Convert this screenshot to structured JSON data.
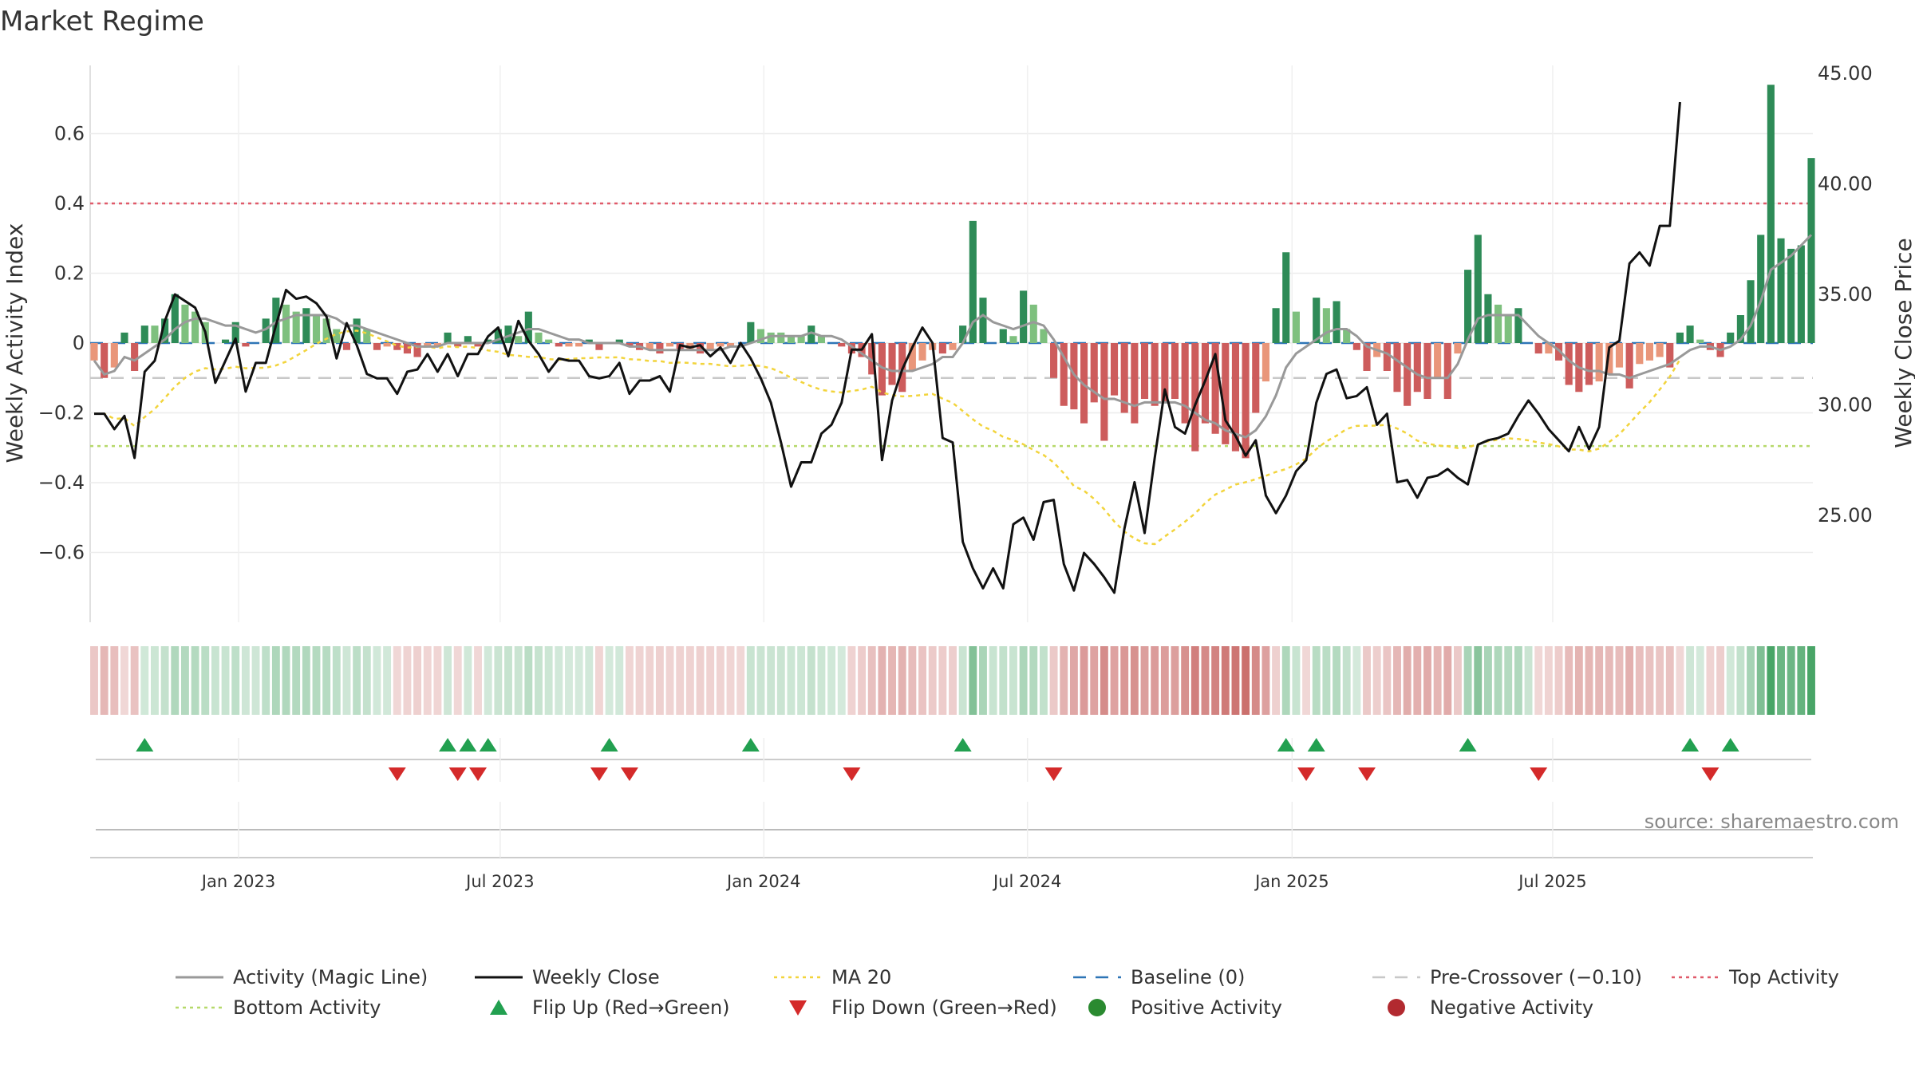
{
  "chart_data": {
    "type": "bar",
    "title": "Market Regime",
    "ylabel_left": "Weekly Activity Index",
    "ylabel_right": "Weekly Close Price",
    "source": "source: sharemaestro.com",
    "left_ylim": [
      -0.8,
      0.8
    ],
    "right_ylim": [
      20,
      46
    ],
    "left_ticks": [
      "0.6",
      "0.4",
      "0.2",
      "0",
      "−0.2",
      "−0.4",
      "−0.6"
    ],
    "left_tick_values": [
      0.6,
      0.4,
      0.2,
      0,
      -0.2,
      -0.4,
      -0.6
    ],
    "right_ticks": [
      "45.00",
      "40.00",
      "35.00",
      "30.00",
      "25.00"
    ],
    "right_tick_values": [
      45,
      40,
      35,
      30,
      25
    ],
    "x_ticks": [
      "Jan 2023",
      "Jul 2023",
      "Jan 2024",
      "Jul 2024",
      "Jan 2025",
      "Jul 2025"
    ],
    "x_tick_weeks": [
      14.3,
      40.2,
      66.3,
      92.4,
      118.6,
      144.4
    ],
    "reference_lines": {
      "top_activity": 0.4,
      "bottom_activity": -0.295,
      "pre_crossover": -0.1,
      "baseline": 0
    },
    "activity": [
      -0.05,
      -0.1,
      -0.07,
      0.03,
      -0.08,
      0.05,
      0.05,
      0.07,
      0.14,
      0.11,
      0.09,
      0.06,
      0.0,
      0.01,
      0.06,
      -0.01,
      0.0,
      0.07,
      0.13,
      0.11,
      0.09,
      0.1,
      0.08,
      0.07,
      0.04,
      -0.02,
      0.07,
      0.04,
      -0.02,
      -0.01,
      -0.02,
      -0.03,
      -0.04,
      -0.01,
      -0.01,
      0.03,
      -0.01,
      0.02,
      -0.01,
      0.01,
      0.04,
      0.05,
      0.02,
      0.09,
      0.03,
      0.01,
      -0.01,
      -0.01,
      -0.01,
      0.01,
      -0.02,
      0.0,
      0.01,
      -0.01,
      -0.02,
      -0.02,
      -0.03,
      -0.01,
      -0.02,
      -0.02,
      -0.03,
      -0.02,
      -0.01,
      -0.01,
      0.0,
      0.06,
      0.04,
      0.03,
      0.03,
      0.02,
      0.02,
      0.05,
      0.02,
      0.0,
      -0.01,
      -0.03,
      -0.04,
      -0.09,
      -0.15,
      -0.12,
      -0.14,
      -0.08,
      -0.05,
      -0.02,
      -0.03,
      -0.02,
      0.05,
      0.35,
      0.13,
      0.0,
      0.04,
      0.02,
      0.15,
      0.11,
      0.04,
      -0.1,
      -0.18,
      -0.19,
      -0.23,
      -0.17,
      -0.28,
      -0.15,
      -0.2,
      -0.23,
      -0.16,
      -0.18,
      -0.17,
      -0.16,
      -0.23,
      -0.31,
      -0.23,
      -0.26,
      -0.29,
      -0.31,
      -0.33,
      -0.2,
      -0.11,
      0.1,
      0.26,
      0.09,
      0.0,
      0.13,
      0.1,
      0.12,
      0.04,
      -0.02,
      -0.08,
      -0.04,
      -0.08,
      -0.14,
      -0.18,
      -0.14,
      -0.16,
      -0.1,
      -0.16,
      -0.03,
      0.21,
      0.31,
      0.14,
      0.11,
      0.08,
      0.1,
      0.0,
      -0.03,
      -0.03,
      -0.05,
      -0.12,
      -0.14,
      -0.12,
      -0.11,
      -0.09,
      -0.07,
      -0.13,
      -0.06,
      -0.05,
      -0.04,
      -0.07,
      0.03,
      0.05,
      0.01,
      -0.02,
      -0.04,
      0.03,
      0.08,
      0.18,
      0.31,
      0.74,
      0.3,
      0.27,
      0.28,
      0.53
    ],
    "magic_line": [
      -0.05,
      -0.09,
      -0.08,
      -0.04,
      -0.05,
      -0.03,
      -0.01,
      0.01,
      0.04,
      0.06,
      0.07,
      0.07,
      0.06,
      0.05,
      0.05,
      0.04,
      0.03,
      0.04,
      0.06,
      0.07,
      0.08,
      0.08,
      0.08,
      0.08,
      0.07,
      0.05,
      0.05,
      0.04,
      0.03,
      0.02,
      0.01,
      0.0,
      -0.01,
      -0.01,
      -0.01,
      0.0,
      0.0,
      0.0,
      0.0,
      0.0,
      0.01,
      0.02,
      0.03,
      0.04,
      0.04,
      0.03,
      0.02,
      0.01,
      0.01,
      0.0,
      0.0,
      0.0,
      0.0,
      -0.01,
      -0.01,
      -0.02,
      -0.02,
      -0.02,
      -0.02,
      -0.02,
      -0.02,
      -0.02,
      -0.02,
      -0.01,
      -0.01,
      0.0,
      0.01,
      0.02,
      0.02,
      0.02,
      0.02,
      0.03,
      0.02,
      0.02,
      0.01,
      -0.01,
      -0.03,
      -0.05,
      -0.07,
      -0.08,
      -0.08,
      -0.08,
      -0.07,
      -0.06,
      -0.04,
      -0.04,
      0.0,
      0.06,
      0.08,
      0.06,
      0.05,
      0.04,
      0.05,
      0.06,
      0.05,
      0.01,
      -0.04,
      -0.09,
      -0.12,
      -0.14,
      -0.16,
      -0.16,
      -0.17,
      -0.18,
      -0.17,
      -0.17,
      -0.17,
      -0.17,
      -0.18,
      -0.2,
      -0.22,
      -0.23,
      -0.25,
      -0.26,
      -0.27,
      -0.25,
      -0.21,
      -0.15,
      -0.07,
      -0.03,
      -0.01,
      0.01,
      0.03,
      0.04,
      0.04,
      0.02,
      -0.01,
      -0.02,
      -0.03,
      -0.05,
      -0.07,
      -0.09,
      -0.1,
      -0.1,
      -0.1,
      -0.06,
      0.01,
      0.07,
      0.08,
      0.08,
      0.08,
      0.08,
      0.05,
      0.02,
      0.0,
      -0.02,
      -0.05,
      -0.07,
      -0.08,
      -0.08,
      -0.09,
      -0.09,
      -0.1,
      -0.09,
      -0.08,
      -0.07,
      -0.06,
      -0.04,
      -0.02,
      -0.01,
      -0.01,
      -0.02,
      -0.01,
      0.01,
      0.05,
      0.12,
      0.21,
      0.23,
      0.25,
      0.28,
      0.31
    ],
    "weekly_close": [
      29.6,
      29.6,
      28.9,
      29.5,
      27.6,
      31.5,
      32.0,
      33.8,
      35.0,
      34.7,
      34.4,
      33.3,
      31.0,
      32.0,
      33.0,
      30.6,
      31.9,
      31.9,
      33.6,
      35.2,
      34.8,
      34.9,
      34.6,
      34.0,
      32.1,
      33.7,
      32.7,
      31.4,
      31.2,
      31.2,
      30.5,
      31.5,
      31.6,
      32.3,
      31.5,
      32.3,
      31.3,
      32.3,
      32.3,
      33.1,
      33.5,
      32.2,
      33.8,
      32.9,
      32.3,
      31.5,
      32.1,
      32.0,
      32.0,
      31.3,
      31.2,
      31.3,
      31.9,
      30.5,
      31.1,
      31.1,
      31.3,
      30.6,
      32.7,
      32.6,
      32.7,
      32.2,
      32.6,
      31.9,
      32.8,
      32.1,
      31.2,
      30.1,
      28.3,
      26.3,
      27.4,
      27.4,
      28.7,
      29.1,
      30.1,
      32.5,
      32.5,
      33.2,
      27.5,
      30.2,
      31.6,
      32.6,
      33.5,
      32.8,
      28.5,
      28.3,
      23.8,
      22.6,
      21.7,
      22.6,
      21.7,
      24.6,
      24.9,
      23.9,
      25.6,
      25.7,
      22.8,
      21.6,
      23.3,
      22.8,
      22.2,
      21.5,
      24.4,
      26.5,
      24.2,
      27.6,
      30.7,
      29.0,
      28.7,
      30.0,
      31.1,
      32.3,
      29.3,
      28.6,
      27.7,
      28.4,
      25.9,
      25.1,
      25.9,
      27.0,
      27.5,
      30.1,
      31.4,
      31.6,
      30.3,
      30.4,
      30.8,
      29.1,
      29.6,
      26.5,
      26.6,
      25.8,
      26.7,
      26.8,
      27.1,
      26.7,
      26.4,
      28.2,
      28.4,
      28.5,
      28.7,
      29.5,
      30.2,
      29.6,
      28.9,
      28.4,
      27.9,
      29.0,
      28.0,
      29.0,
      32.6,
      32.9,
      36.4,
      36.9,
      36.3,
      38.1,
      38.1,
      43.7
    ]
  },
  "legend": [
    {
      "label": "Activity (Magic Line)",
      "kind": "line",
      "color": "#999999"
    },
    {
      "label": "Weekly Close",
      "kind": "line",
      "color": "#111111"
    },
    {
      "label": "MA 20",
      "kind": "dotted",
      "color": "#f2d43c"
    },
    {
      "label": "Baseline (0)",
      "kind": "dashed",
      "color": "#2e75b6"
    },
    {
      "label": "Pre-Crossover (−0.10)",
      "kind": "dashed",
      "color": "#c8c8c8"
    },
    {
      "label": "Top Activity",
      "kind": "dotted",
      "color": "#e05a6a"
    },
    {
      "label": "Bottom Activity",
      "kind": "dotted",
      "color": "#b6d96a"
    },
    {
      "label": "Flip Up (Red→Green)",
      "kind": "tri-up",
      "color": "#22a050"
    },
    {
      "label": "Flip Down (Green→Red)",
      "kind": "tri-down",
      "color": "#d42a2a"
    },
    {
      "label": "Positive Activity",
      "kind": "dot",
      "color": "#2a8a30"
    },
    {
      "label": "Negative Activity",
      "kind": "dot",
      "color": "#b22a30"
    }
  ],
  "colors": {
    "pos_strong": "#2e8b57",
    "pos_light": "#7ec07e",
    "neg_strong": "#cd5c5c",
    "neg_light": "#e9967a",
    "close": "#111111",
    "magic": "#999999",
    "ma20": "#f2d43c"
  }
}
